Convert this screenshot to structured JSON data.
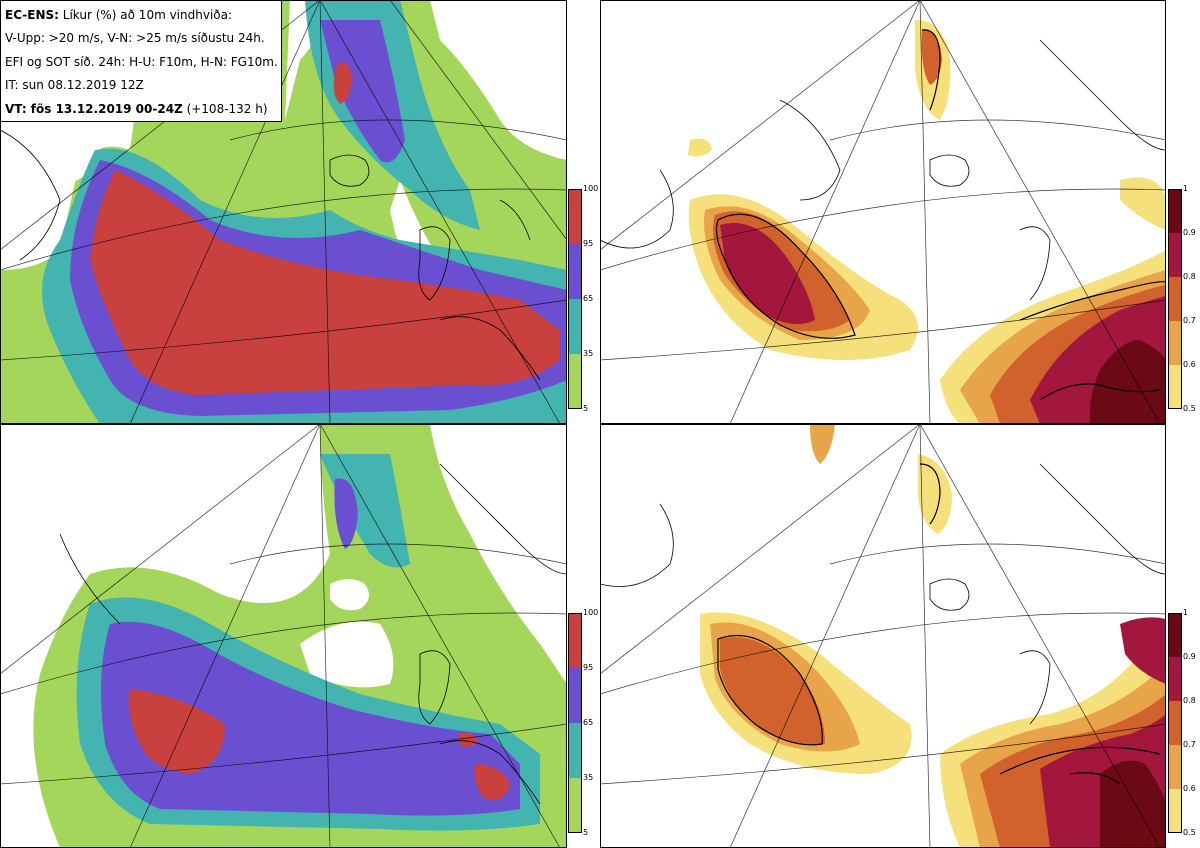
{
  "title_box": {
    "line1_bold": "EC-ENS:",
    "line1_rest": " Líkur (%) að 10m vindhviða:",
    "line2": "V-Upp: >20 m/s, V-N: >25 m/s síðustu 24h.",
    "line3": "EFI og SOT síð. 24h: H-U: F10m, H-N: FG10m.",
    "line4": "IT: sun 08.12.2019 12Z",
    "line5_bold": "VT: fös 13.12.2019 00-24Z",
    "line5_rest": " (+108-132 h)"
  },
  "probability_colorbar": {
    "ticks": [
      "100",
      "95",
      "65",
      "35",
      "5"
    ],
    "bands": [
      {
        "from": 95,
        "to": 100,
        "color": "#c8413f"
      },
      {
        "from": 65,
        "to": 95,
        "color": "#6a50d1"
      },
      {
        "from": 35,
        "to": 65,
        "color": "#43b4b0"
      },
      {
        "from": 5,
        "to": 35,
        "color": "#a5d65c"
      }
    ]
  },
  "efi_colorbar": {
    "ticks": [
      "1",
      "0.9",
      "0.8",
      "0.7",
      "0.6",
      "0.5"
    ],
    "bands": [
      {
        "from": 0.9,
        "to": 1.0,
        "color": "#6b0a14"
      },
      {
        "from": 0.8,
        "to": 0.9,
        "color": "#a3173e"
      },
      {
        "from": 0.7,
        "to": 0.8,
        "color": "#d2622c"
      },
      {
        "from": 0.6,
        "to": 0.7,
        "color": "#e8a448"
      },
      {
        "from": 0.5,
        "to": 0.6,
        "color": "#f6e07b"
      }
    ]
  },
  "panels": [
    {
      "name": "upper-left",
      "field": "probability >20 m/s"
    },
    {
      "name": "upper-right",
      "field": "EFI/SOT F10m"
    },
    {
      "name": "lower-left",
      "field": "probability >25 m/s"
    },
    {
      "name": "lower-right",
      "field": "EFI/SOT FG10m"
    }
  ],
  "colors": {
    "prob_red": "#c8413f",
    "prob_purple": "#6a50d1",
    "prob_teal": "#43b4b0",
    "prob_green": "#a5d65c",
    "efi_dark": "#6b0a14",
    "efi_crimson": "#a3173e",
    "efi_orange": "#d2622c",
    "efi_lightorange": "#e8a448",
    "efi_yellow": "#f6e07b"
  }
}
